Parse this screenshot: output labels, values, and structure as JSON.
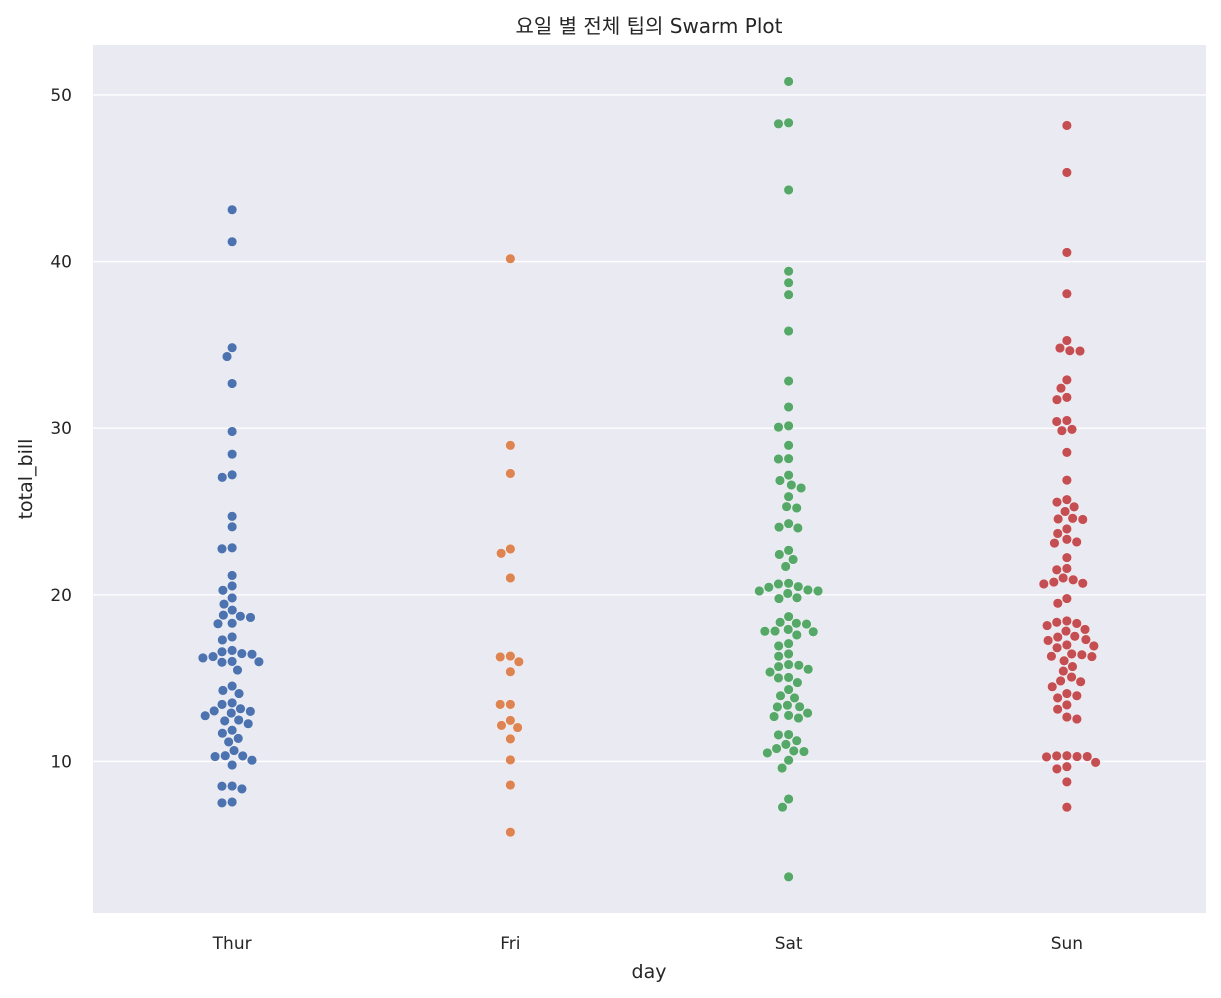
{
  "chart_data": {
    "type": "scatter",
    "title": "요일 별 전체 팁의 Swarm Plot",
    "xlabel": "day",
    "ylabel": "total_bill",
    "categories": [
      "Thur",
      "Fri",
      "Sat",
      "Sun"
    ],
    "ylim": [
      0.9,
      53.0
    ],
    "yticks": [
      10,
      20,
      30,
      40,
      50
    ],
    "grid": true,
    "legend": "none",
    "colors": {
      "Thur": "#4c72b0",
      "Fri": "#dd8452",
      "Sat": "#55a868",
      "Sun": "#c44e52",
      "background": "#eaeaf2",
      "grid": "#ffffff"
    },
    "series": [
      {
        "category": "Thur",
        "values": [
          43.11,
          41.19,
          34.83,
          34.3,
          32.68,
          29.8,
          28.44,
          27.2,
          27.05,
          24.71,
          24.08,
          22.82,
          22.76,
          21.16,
          20.53,
          20.27,
          19.81,
          19.44,
          19.08,
          18.78,
          18.71,
          18.64,
          18.29,
          18.26,
          17.47,
          17.29,
          16.66,
          16.58,
          16.47,
          16.43,
          16.29,
          16.21,
          16.0,
          15.98,
          15.95,
          15.48,
          14.52,
          14.26,
          14.07,
          13.51,
          13.42,
          13.16,
          13.03,
          13.0,
          12.9,
          12.74,
          12.48,
          12.43,
          12.26,
          11.87,
          11.69,
          11.38,
          11.17,
          10.65,
          10.34,
          10.33,
          10.29,
          10.07,
          9.78,
          8.52,
          8.51,
          8.35,
          7.56,
          7.51
        ]
      },
      {
        "category": "Fri",
        "values": [
          40.17,
          28.97,
          27.28,
          22.75,
          22.49,
          21.01,
          16.32,
          16.27,
          15.98,
          15.38,
          13.42,
          13.42,
          12.46,
          12.16,
          12.03,
          11.35,
          10.09,
          8.58,
          5.75
        ]
      },
      {
        "category": "Sat",
        "values": [
          50.81,
          48.33,
          48.27,
          44.3,
          39.42,
          38.73,
          38.01,
          35.83,
          32.83,
          31.27,
          30.14,
          30.06,
          28.97,
          28.17,
          28.15,
          27.18,
          26.86,
          26.59,
          26.41,
          25.89,
          25.29,
          25.21,
          24.27,
          24.06,
          24.01,
          22.67,
          22.42,
          22.12,
          21.7,
          20.69,
          20.65,
          20.49,
          20.45,
          20.29,
          20.23,
          20.23,
          20.08,
          19.82,
          19.77,
          18.69,
          18.35,
          18.29,
          18.24,
          17.92,
          17.82,
          17.81,
          17.78,
          17.59,
          17.07,
          16.93,
          16.45,
          16.31,
          15.81,
          15.77,
          15.69,
          15.53,
          15.36,
          15.04,
          15.01,
          14.73,
          14.31,
          13.94,
          13.81,
          13.37,
          13.28,
          13.27,
          12.9,
          12.76,
          12.69,
          12.6,
          11.61,
          11.59,
          11.24,
          11.02,
          10.77,
          10.63,
          10.59,
          10.51,
          10.07,
          9.6,
          7.74,
          7.25,
          3.07
        ]
      },
      {
        "category": "Sun",
        "values": [
          48.17,
          45.35,
          40.55,
          38.07,
          35.26,
          34.81,
          34.65,
          34.63,
          32.9,
          32.4,
          31.85,
          31.71,
          30.46,
          30.4,
          29.93,
          29.85,
          28.55,
          26.88,
          25.71,
          25.56,
          25.28,
          25.0,
          24.59,
          24.55,
          24.52,
          23.95,
          23.68,
          23.33,
          23.17,
          23.1,
          22.23,
          21.58,
          21.5,
          21.01,
          20.9,
          20.76,
          20.69,
          20.65,
          19.77,
          19.49,
          18.43,
          18.35,
          18.28,
          18.15,
          17.92,
          17.82,
          17.51,
          17.46,
          17.31,
          17.26,
          16.99,
          16.93,
          16.82,
          16.45,
          16.4,
          16.31,
          16.29,
          16.04,
          15.69,
          15.42,
          15.06,
          14.83,
          14.78,
          14.48,
          14.07,
          13.94,
          13.81,
          13.39,
          13.13,
          12.66,
          12.54,
          10.34,
          10.33,
          10.29,
          10.27,
          10.29,
          9.94,
          9.68,
          9.55,
          8.77,
          7.25
        ]
      }
    ]
  }
}
